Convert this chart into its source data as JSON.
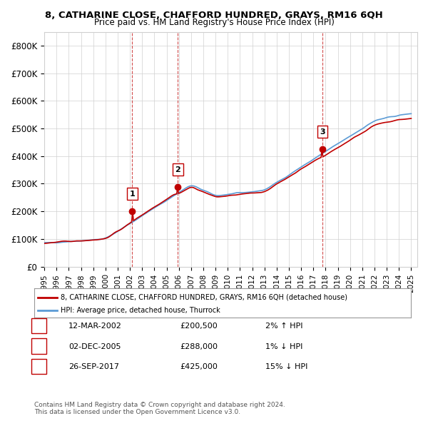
{
  "title": "8, CATHARINE CLOSE, CHAFFORD HUNDRED, GRAYS, RM16 6QH",
  "subtitle": "Price paid vs. HM Land Registry's House Price Index (HPI)",
  "transactions": [
    {
      "num": 1,
      "date": "12-MAR-2002",
      "year": 2002.19,
      "price": 200500,
      "pct": "2%",
      "dir": "↑"
    },
    {
      "num": 2,
      "date": "02-DEC-2005",
      "year": 2005.92,
      "price": 288000,
      "pct": "1%",
      "dir": "↓"
    },
    {
      "num": 3,
      "date": "26-SEP-2017",
      "year": 2017.73,
      "price": 425000,
      "pct": "15%",
      "dir": "↓"
    }
  ],
  "legend_line1": "8, CATHARINE CLOSE, CHAFFORD HUNDRED, GRAYS, RM16 6QH (detached house)",
  "legend_line2": "HPI: Average price, detached house, Thurrock",
  "footer1": "Contains HM Land Registry data © Crown copyright and database right 2024.",
  "footer2": "This data is licensed under the Open Government Licence v3.0.",
  "ylim": [
    0,
    850000
  ],
  "yticks": [
    0,
    100000,
    200000,
    300000,
    400000,
    500000,
    600000,
    700000,
    800000
  ],
  "ytick_labels": [
    "£0",
    "£100K",
    "£200K",
    "£300K",
    "£400K",
    "£500K",
    "£600K",
    "£700K",
    "£800K"
  ],
  "hpi_color": "#5b9bd5",
  "price_color": "#c00000",
  "vline_color": "#c00000",
  "background": "#ffffff",
  "grid_color": "#d0d0d0"
}
